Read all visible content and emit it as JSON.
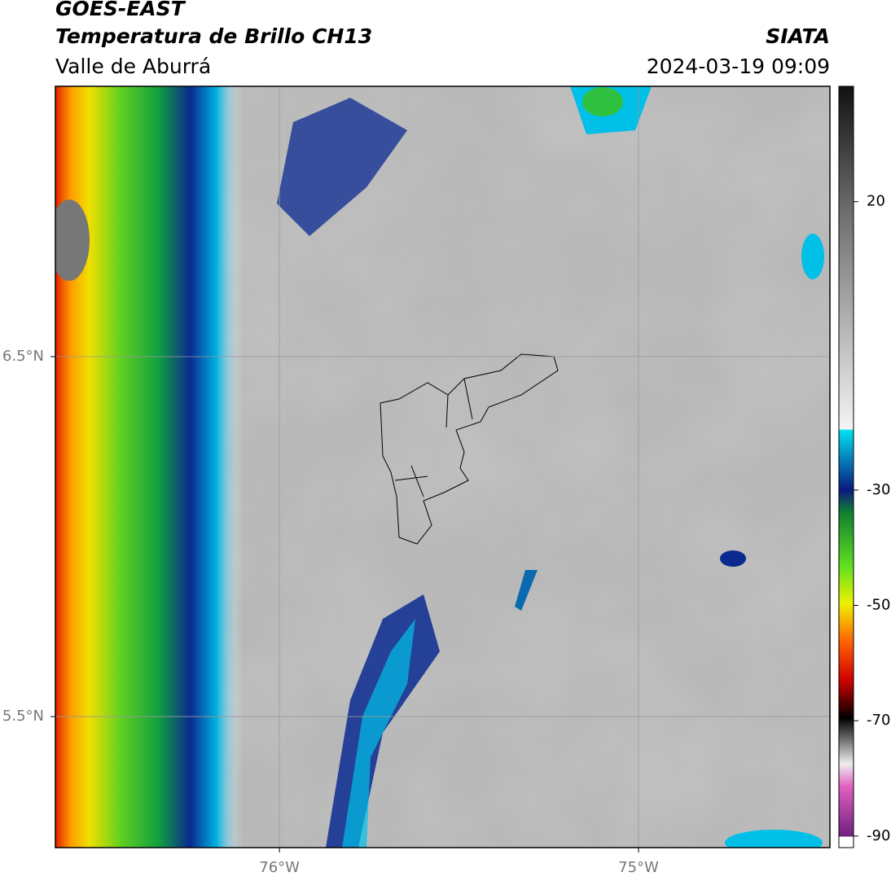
{
  "header": {
    "title": "GOES-EAST",
    "subtitle": "Temperatura de Brillo CH13",
    "region": "Valle de Aburrá",
    "source": "SIATA",
    "datetime": "2024-03-19 09:09"
  },
  "map": {
    "xlim": [
      -76.624,
      -74.467
    ],
    "ylim": [
      5.136,
      7.251
    ],
    "xticks": [
      {
        "value": -76,
        "label": "76°W"
      },
      {
        "value": -75,
        "label": "75°W"
      }
    ],
    "yticks": [
      {
        "value": 5.5,
        "label": "5.5°N"
      },
      {
        "value": 6.5,
        "label": "6.5°N"
      }
    ],
    "grid": true
  },
  "colorbar": {
    "lim": [
      -92,
      40
    ],
    "ticks": [
      -90,
      -70,
      -50,
      -30,
      20
    ]
  }
}
